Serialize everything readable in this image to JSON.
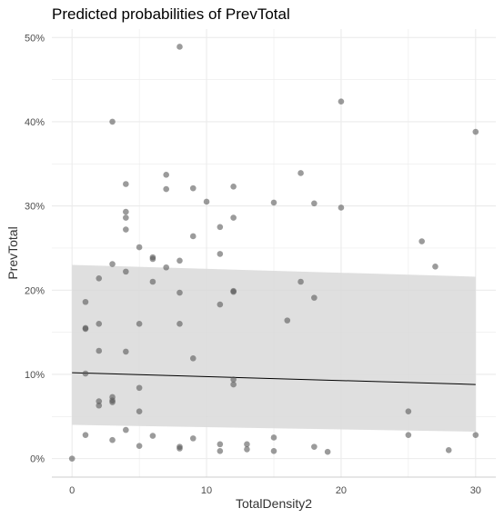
{
  "chart_data": {
    "type": "scatter",
    "title": "Predicted probabilities of PrevTotal",
    "xlabel": "TotalDensity2",
    "ylabel": "PrevTotal",
    "xlim": [
      -1.5,
      31.5
    ],
    "ylim": [
      -0.022,
      0.51
    ],
    "x_ticks": [
      0,
      10,
      20,
      30
    ],
    "x_tick_labels": [
      "0",
      "10",
      "20",
      "30"
    ],
    "y_ticks": [
      0,
      0.1,
      0.2,
      0.3,
      0.4,
      0.5
    ],
    "y_tick_labels": [
      "0%",
      "10%",
      "20%",
      "30%",
      "40%",
      "50%"
    ],
    "grid": true,
    "legend": "none",
    "colors": {
      "points": "#595959",
      "ribbon": "#d9d9d9",
      "line": "#000000",
      "grid": "#ebebeb"
    },
    "fit_line": {
      "x": [
        0,
        30
      ],
      "y": [
        0.102,
        0.088
      ]
    },
    "confidence_band": {
      "x": [
        0,
        30
      ],
      "lower": [
        0.04,
        0.032
      ],
      "upper": [
        0.23,
        0.216
      ]
    },
    "points": [
      [
        0,
        0.0
      ],
      [
        1,
        0.186
      ],
      [
        1,
        0.155
      ],
      [
        1,
        0.154
      ],
      [
        1,
        0.101
      ],
      [
        1,
        0.028
      ],
      [
        2,
        0.214
      ],
      [
        2,
        0.16
      ],
      [
        2,
        0.128
      ],
      [
        2,
        0.068
      ],
      [
        2,
        0.063
      ],
      [
        3,
        0.4
      ],
      [
        3,
        0.231
      ],
      [
        3,
        0.073
      ],
      [
        3,
        0.069
      ],
      [
        3,
        0.067
      ],
      [
        3,
        0.022
      ],
      [
        4,
        0.326
      ],
      [
        4,
        0.293
      ],
      [
        4,
        0.286
      ],
      [
        4,
        0.272
      ],
      [
        4,
        0.222
      ],
      [
        4,
        0.127
      ],
      [
        4,
        0.034
      ],
      [
        5,
        0.251
      ],
      [
        5,
        0.16
      ],
      [
        5,
        0.084
      ],
      [
        5,
        0.056
      ],
      [
        5,
        0.015
      ],
      [
        6,
        0.239
      ],
      [
        6,
        0.237
      ],
      [
        6,
        0.21
      ],
      [
        6,
        0.027
      ],
      [
        7,
        0.337
      ],
      [
        7,
        0.32
      ],
      [
        7,
        0.227
      ],
      [
        8,
        0.489
      ],
      [
        8,
        0.235
      ],
      [
        8,
        0.197
      ],
      [
        8,
        0.16
      ],
      [
        8,
        0.014
      ],
      [
        8,
        0.012
      ],
      [
        9,
        0.321
      ],
      [
        9,
        0.264
      ],
      [
        9,
        0.119
      ],
      [
        9,
        0.024
      ],
      [
        10,
        0.305
      ],
      [
        11,
        0.275
      ],
      [
        11,
        0.243
      ],
      [
        11,
        0.183
      ],
      [
        11,
        0.017
      ],
      [
        11,
        0.009
      ],
      [
        12,
        0.323
      ],
      [
        12,
        0.286
      ],
      [
        12,
        0.199
      ],
      [
        12,
        0.198
      ],
      [
        12,
        0.094
      ],
      [
        12,
        0.088
      ],
      [
        13,
        0.017
      ],
      [
        13,
        0.011
      ],
      [
        15,
        0.304
      ],
      [
        15,
        0.025
      ],
      [
        15,
        0.009
      ],
      [
        16,
        0.164
      ],
      [
        17,
        0.339
      ],
      [
        17,
        0.21
      ],
      [
        18,
        0.303
      ],
      [
        18,
        0.191
      ],
      [
        18,
        0.014
      ],
      [
        19,
        0.008
      ],
      [
        20,
        0.424
      ],
      [
        20,
        0.298
      ],
      [
        25,
        0.056
      ],
      [
        25,
        0.028
      ],
      [
        26,
        0.258
      ],
      [
        27,
        0.228
      ],
      [
        28,
        0.01
      ],
      [
        30,
        0.388
      ],
      [
        30,
        0.028
      ]
    ]
  }
}
